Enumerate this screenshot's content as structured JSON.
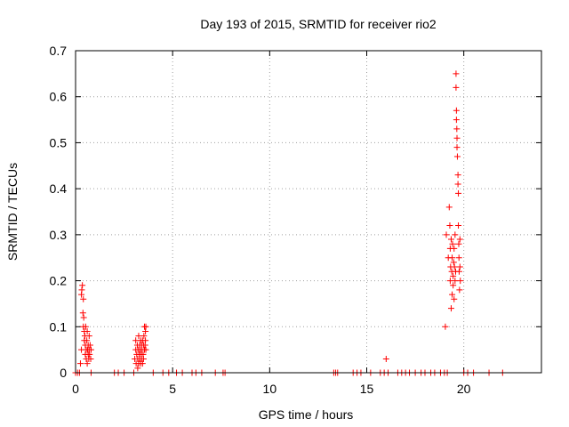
{
  "chart_data": {
    "type": "scatter",
    "title": "Day 193 of 2015, SRMTID for receiver rio2",
    "xlabel": "GPS time / hours",
    "ylabel": "SRMTID / TECUs",
    "xlim": [
      0,
      24
    ],
    "ylim": [
      0,
      0.7
    ],
    "xticks": [
      0,
      5,
      10,
      15,
      20
    ],
    "yticks": [
      0,
      0.1,
      0.2,
      0.3,
      0.4,
      0.5,
      0.6,
      0.7
    ],
    "xtick_labels": [
      "0",
      "5",
      "10",
      "15",
      "20"
    ],
    "ytick_labels": [
      "0",
      "0.1",
      "0.2",
      "0.3",
      "0.4",
      "0.5",
      "0.6",
      "0.7"
    ],
    "grid": true,
    "marker": "+",
    "color": "#ff0000",
    "series": [
      {
        "points": [
          [
            0.0,
            0
          ],
          [
            0.1,
            0
          ],
          [
            0.2,
            0
          ],
          [
            0.25,
            0.02
          ],
          [
            0.3,
            0.05
          ],
          [
            0.3,
            0.17
          ],
          [
            0.32,
            0.18
          ],
          [
            0.35,
            0.19
          ],
          [
            0.38,
            0.13
          ],
          [
            0.4,
            0.1
          ],
          [
            0.4,
            0.16
          ],
          [
            0.42,
            0.12
          ],
          [
            0.45,
            0.09
          ],
          [
            0.45,
            0.07
          ],
          [
            0.48,
            0.08
          ],
          [
            0.5,
            0.06
          ],
          [
            0.5,
            0.04
          ],
          [
            0.52,
            0.1
          ],
          [
            0.55,
            0.05
          ],
          [
            0.55,
            0.03
          ],
          [
            0.58,
            0.07
          ],
          [
            0.6,
            0.09
          ],
          [
            0.6,
            0.02
          ],
          [
            0.62,
            0.05
          ],
          [
            0.65,
            0.06
          ],
          [
            0.65,
            0.04
          ],
          [
            0.68,
            0.03
          ],
          [
            0.7,
            0.05
          ],
          [
            0.7,
            0.08
          ],
          [
            0.72,
            0.04
          ],
          [
            0.75,
            0.06
          ],
          [
            0.78,
            0.03
          ],
          [
            0.8,
            0.05
          ],
          [
            0.8,
            0
          ],
          [
            2.0,
            0
          ],
          [
            2.2,
            0
          ],
          [
            2.5,
            0
          ],
          [
            3.0,
            0
          ],
          [
            3.05,
            0.03
          ],
          [
            3.1,
            0.05
          ],
          [
            3.1,
            0.07
          ],
          [
            3.12,
            0.02
          ],
          [
            3.15,
            0.04
          ],
          [
            3.18,
            0.06
          ],
          [
            3.2,
            0.01
          ],
          [
            3.2,
            0.03
          ],
          [
            3.22,
            0.05
          ],
          [
            3.25,
            0.02
          ],
          [
            3.25,
            0.08
          ],
          [
            3.28,
            0.04
          ],
          [
            3.3,
            0.06
          ],
          [
            3.3,
            0.03
          ],
          [
            3.32,
            0.05
          ],
          [
            3.35,
            0.02
          ],
          [
            3.35,
            0.07
          ],
          [
            3.38,
            0.04
          ],
          [
            3.4,
            0.06
          ],
          [
            3.4,
            0.03
          ],
          [
            3.42,
            0.05
          ],
          [
            3.45,
            0.02
          ],
          [
            3.45,
            0.07
          ],
          [
            3.48,
            0.04
          ],
          [
            3.5,
            0.06
          ],
          [
            3.5,
            0.03
          ],
          [
            3.52,
            0.08
          ],
          [
            3.55,
            0.05
          ],
          [
            3.55,
            0.1
          ],
          [
            3.58,
            0.06
          ],
          [
            3.6,
            0.09
          ],
          [
            3.6,
            0.07
          ],
          [
            3.62,
            0.1
          ],
          [
            3.62,
            0.05
          ],
          [
            4.0,
            0
          ],
          [
            4.5,
            0
          ],
          [
            4.8,
            0
          ],
          [
            5.2,
            0
          ],
          [
            5.5,
            0
          ],
          [
            6.0,
            0
          ],
          [
            6.2,
            0
          ],
          [
            6.5,
            0
          ],
          [
            7.2,
            0
          ],
          [
            7.6,
            0
          ],
          [
            7.7,
            0
          ],
          [
            13.3,
            0
          ],
          [
            13.4,
            0
          ],
          [
            13.5,
            0
          ],
          [
            14.3,
            0
          ],
          [
            14.5,
            0
          ],
          [
            14.7,
            0
          ],
          [
            15.2,
            0
          ],
          [
            15.7,
            0
          ],
          [
            15.9,
            0
          ],
          [
            16.0,
            0.03
          ],
          [
            16.1,
            0
          ],
          [
            16.6,
            0
          ],
          [
            16.8,
            0
          ],
          [
            17.0,
            0
          ],
          [
            17.2,
            0
          ],
          [
            17.5,
            0
          ],
          [
            17.8,
            0
          ],
          [
            18.0,
            0
          ],
          [
            18.3,
            0
          ],
          [
            18.5,
            0
          ],
          [
            18.8,
            0
          ],
          [
            19.0,
            0
          ],
          [
            19.05,
            0.1
          ],
          [
            19.1,
            0.3
          ],
          [
            19.15,
            0
          ],
          [
            19.2,
            0.25
          ],
          [
            19.25,
            0.36
          ],
          [
            19.28,
            0.32
          ],
          [
            19.3,
            0.27
          ],
          [
            19.3,
            0.2
          ],
          [
            19.32,
            0.23
          ],
          [
            19.35,
            0.29
          ],
          [
            19.35,
            0.14
          ],
          [
            19.38,
            0.22
          ],
          [
            19.4,
            0.25
          ],
          [
            19.4,
            0.17
          ],
          [
            19.42,
            0.28
          ],
          [
            19.45,
            0.21
          ],
          [
            19.45,
            0.19
          ],
          [
            19.48,
            0.24
          ],
          [
            19.5,
            0.27
          ],
          [
            19.5,
            0.16
          ],
          [
            19.52,
            0.23
          ],
          [
            19.55,
            0.3
          ],
          [
            19.55,
            0.2
          ],
          [
            19.58,
            0.22
          ],
          [
            19.6,
            0.65
          ],
          [
            19.6,
            0.62
          ],
          [
            19.62,
            0.57
          ],
          [
            19.62,
            0.55
          ],
          [
            19.64,
            0.53
          ],
          [
            19.65,
            0.51
          ],
          [
            19.65,
            0.49
          ],
          [
            19.67,
            0.47
          ],
          [
            19.7,
            0.43
          ],
          [
            19.7,
            0.41
          ],
          [
            19.72,
            0.39
          ],
          [
            19.72,
            0.32
          ],
          [
            19.74,
            0.28
          ],
          [
            19.75,
            0.25
          ],
          [
            19.76,
            0.22
          ],
          [
            19.78,
            0.18
          ],
          [
            19.8,
            0.29
          ],
          [
            19.8,
            0.23
          ],
          [
            19.82,
            0.2
          ],
          [
            20.0,
            0
          ],
          [
            20.2,
            0
          ],
          [
            20.5,
            0
          ],
          [
            21.3,
            0
          ],
          [
            22.0,
            0
          ]
        ]
      }
    ]
  }
}
